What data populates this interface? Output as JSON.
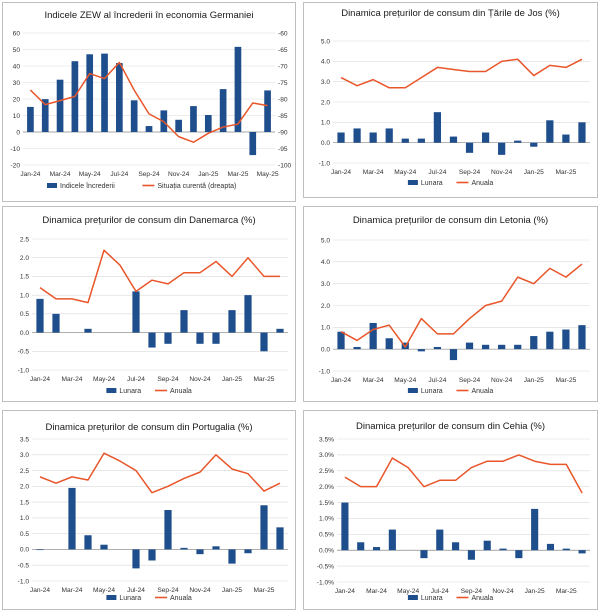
{
  "colors": {
    "bar": "#1f4e8c",
    "line": "#e8562a",
    "grid": "#d9d9d9",
    "zero": "#8c8c8c"
  },
  "chart_data": [
    {
      "id": "zew",
      "type": "bar+line",
      "title": "Indicele ZEW al încrederii în economia Germaniei",
      "categories": [
        "Jan-24",
        "Feb-24",
        "Mar-24",
        "Apr-24",
        "May-24",
        "Jun-24",
        "Jul-24",
        "Aug-24",
        "Sep-24",
        "Oct-24",
        "Nov-24",
        "Dec-24",
        "Jan-25",
        "Feb-25",
        "Mar-25",
        "Apr-25",
        "May-25"
      ],
      "xticks": [
        "Jan-24",
        "Mar-24",
        "May-24",
        "Jul-24",
        "Sep-24",
        "Nov-24",
        "Jan-25",
        "Mar-25",
        "May-25"
      ],
      "ylim": [
        -20,
        60
      ],
      "yticks": [
        -20,
        -10,
        0,
        10,
        20,
        30,
        40,
        50,
        60
      ],
      "y2lim": [
        -100,
        -60
      ],
      "y2ticks": [
        -100,
        -95,
        -90,
        -85,
        -80,
        -75,
        -70,
        -65,
        -60
      ],
      "series": [
        {
          "name": "Indicele încrederii",
          "type": "bar",
          "axis": "left",
          "values": [
            15.2,
            19.9,
            31.7,
            42.9,
            47.1,
            47.5,
            41.8,
            19.2,
            3.6,
            13.1,
            7.4,
            15.7,
            10.3,
            26.0,
            51.6,
            -14.0,
            25.2
          ]
        },
        {
          "name": "Situația curentă (dreapta)",
          "type": "line",
          "axis": "right",
          "values": [
            -77.3,
            -81.7,
            -80.5,
            -79.2,
            -72.3,
            -73.8,
            -68.9,
            -77.3,
            -84.5,
            -86.9,
            -91.4,
            -93.1,
            -90.4,
            -88.5,
            -87.6,
            -81.2,
            -82.0
          ]
        }
      ],
      "legend": [
        "Indicele încrederii",
        "Situația curentă (dreapta)"
      ]
    },
    {
      "id": "nl",
      "type": "bar+line",
      "title": "Dinamica prețurilor de consum din Țările de Jos (%)",
      "categories": [
        "Jan-24",
        "Feb-24",
        "Mar-24",
        "Apr-24",
        "May-24",
        "Jun-24",
        "Jul-24",
        "Aug-24",
        "Sep-24",
        "Oct-24",
        "Nov-24",
        "Dec-24",
        "Jan-25",
        "Feb-25",
        "Mar-25",
        "Apr-25"
      ],
      "xticks": [
        "Jan-24",
        "Mar-24",
        "May-24",
        "Jul-24",
        "Sep-24",
        "Nov-24",
        "Jan-25",
        "Mar-25"
      ],
      "ylim": [
        -1.0,
        5.0
      ],
      "yticks": [
        -1.0,
        0.0,
        1.0,
        2.0,
        3.0,
        4.0,
        5.0
      ],
      "decimals": 1,
      "series": [
        {
          "name": "Lunara",
          "type": "bar",
          "values": [
            0.5,
            0.7,
            0.5,
            0.7,
            0.2,
            0.2,
            1.5,
            0.3,
            -0.5,
            0.5,
            -0.6,
            0.1,
            -0.2,
            1.1,
            0.4,
            1.0
          ]
        },
        {
          "name": "Anuala",
          "type": "line",
          "values": [
            3.2,
            2.8,
            3.1,
            2.7,
            2.7,
            3.2,
            3.7,
            3.6,
            3.5,
            3.5,
            4.0,
            4.1,
            3.3,
            3.8,
            3.7,
            4.1
          ]
        }
      ],
      "legend": [
        "Lunara",
        "Anuala"
      ]
    },
    {
      "id": "dk",
      "type": "bar+line",
      "title": "Dinamica prețurilor de consum din Danemarca (%)",
      "categories": [
        "Jan-24",
        "Feb-24",
        "Mar-24",
        "Apr-24",
        "May-24",
        "Jun-24",
        "Jul-24",
        "Aug-24",
        "Sep-24",
        "Oct-24",
        "Nov-24",
        "Dec-24",
        "Jan-25",
        "Feb-25",
        "Mar-25",
        "Apr-25"
      ],
      "xticks": [
        "Jan-24",
        "Mar-24",
        "May-24",
        "Jul-24",
        "Sep-24",
        "Nov-24",
        "Jan-25",
        "Mar-25"
      ],
      "ylim": [
        -1.0,
        2.5
      ],
      "yticks": [
        -1.0,
        -0.5,
        0.0,
        0.5,
        1.0,
        1.5,
        2.0,
        2.5
      ],
      "decimals": 1,
      "series": [
        {
          "name": "Lunara",
          "type": "bar",
          "values": [
            0.9,
            0.5,
            0.0,
            0.1,
            0.0,
            0.0,
            1.1,
            -0.4,
            -0.3,
            0.6,
            -0.3,
            -0.3,
            0.6,
            1.0,
            -0.5,
            0.1
          ]
        },
        {
          "name": "Anuala",
          "type": "line",
          "values": [
            1.2,
            0.9,
            0.9,
            0.8,
            2.2,
            1.8,
            1.1,
            1.4,
            1.3,
            1.6,
            1.6,
            1.9,
            1.5,
            2.0,
            1.5,
            1.5
          ]
        }
      ],
      "legend": [
        "Lunara",
        "Anuala"
      ]
    },
    {
      "id": "lv",
      "type": "bar+line",
      "title": "Dinamica prețurilor de consum din Letonia (%)",
      "categories": [
        "Jan-24",
        "Feb-24",
        "Mar-24",
        "Apr-24",
        "May-24",
        "Jun-24",
        "Jul-24",
        "Aug-24",
        "Sep-24",
        "Oct-24",
        "Nov-24",
        "Dec-24",
        "Jan-25",
        "Feb-25",
        "Mar-25",
        "Apr-25"
      ],
      "xticks": [
        "Jan-24",
        "Mar-24",
        "May-24",
        "Jul-24",
        "Sep-24",
        "Nov-24",
        "Jan-25",
        "Mar-25"
      ],
      "ylim": [
        -1.0,
        5.0
      ],
      "yticks": [
        -1.0,
        0.0,
        1.0,
        2.0,
        3.0,
        4.0,
        5.0
      ],
      "decimals": 1,
      "series": [
        {
          "name": "Lunara",
          "type": "bar",
          "values": [
            0.8,
            0.1,
            1.2,
            0.5,
            0.3,
            -0.1,
            0.1,
            -0.5,
            0.3,
            0.2,
            0.2,
            0.2,
            0.6,
            0.8,
            0.9,
            1.1
          ]
        },
        {
          "name": "Anuala",
          "type": "line",
          "values": [
            0.8,
            0.4,
            0.9,
            1.1,
            0.1,
            1.4,
            0.7,
            0.7,
            1.4,
            2.0,
            2.2,
            3.3,
            3.0,
            3.7,
            3.3,
            3.9
          ]
        }
      ],
      "legend": [
        "Lunara",
        "Anuala"
      ]
    },
    {
      "id": "pt",
      "type": "bar+line",
      "title": "Dinamica prețurilor de consum din Portugalia (%)",
      "categories": [
        "Jan-24",
        "Feb-24",
        "Mar-24",
        "Apr-24",
        "May-24",
        "Jun-24",
        "Jul-24",
        "Aug-24",
        "Sep-24",
        "Oct-24",
        "Nov-24",
        "Dec-24",
        "Jan-25",
        "Feb-25",
        "Mar-25",
        "Apr-25"
      ],
      "xticks": [
        "Jan-24",
        "Mar-24",
        "May-24",
        "Jul-24",
        "Sep-24",
        "Nov-24",
        "Jan-25",
        "Mar-25"
      ],
      "ylim": [
        -1.0,
        3.5
      ],
      "yticks": [
        -1.0,
        -0.5,
        0.0,
        0.5,
        1.0,
        1.5,
        2.0,
        2.5,
        3.0,
        3.5
      ],
      "decimals": 1,
      "series": [
        {
          "name": "Lunara",
          "type": "bar",
          "values": [
            -0.02,
            0.0,
            1.95,
            0.45,
            0.15,
            0.0,
            -0.6,
            -0.35,
            1.25,
            0.05,
            -0.15,
            0.1,
            -0.45,
            -0.12,
            1.4,
            0.7
          ]
        },
        {
          "name": "Anuala",
          "type": "line",
          "values": [
            2.3,
            2.1,
            2.3,
            2.2,
            3.05,
            2.8,
            2.5,
            1.8,
            2.0,
            2.25,
            2.45,
            3.0,
            2.55,
            2.4,
            1.85,
            2.1
          ]
        }
      ],
      "legend": [
        "Lunara",
        "Anuala"
      ]
    },
    {
      "id": "cz",
      "type": "bar+line",
      "title": "Dinamica prețurilor de consum din Cehia (%)",
      "categories": [
        "Jan-24",
        "Feb-24",
        "Mar-24",
        "Apr-24",
        "May-24",
        "Jun-24",
        "Jul-24",
        "Aug-24",
        "Sep-24",
        "Oct-24",
        "Nov-24",
        "Dec-24",
        "Jan-25",
        "Feb-25",
        "Mar-25",
        "Apr-25"
      ],
      "xticks": [
        "Jan-24",
        "Mar-24",
        "May-24",
        "Jul-24",
        "Sep-24",
        "Nov-24",
        "Jan-25",
        "Mar-25"
      ],
      "ylim": [
        -1.0,
        3.5
      ],
      "yticks": [
        -1.0,
        -0.5,
        0.0,
        0.5,
        1.0,
        1.5,
        2.0,
        2.5,
        3.0,
        3.5
      ],
      "decimals": 1,
      "percent": true,
      "series": [
        {
          "name": "Lunara",
          "type": "bar",
          "values": [
            1.5,
            0.25,
            0.1,
            0.65,
            0.0,
            -0.25,
            0.65,
            0.25,
            -0.3,
            0.3,
            0.05,
            -0.25,
            1.3,
            0.2,
            0.05,
            -0.1
          ]
        },
        {
          "name": "Anuala",
          "type": "line",
          "values": [
            2.3,
            2.0,
            2.0,
            2.9,
            2.6,
            2.0,
            2.2,
            2.2,
            2.6,
            2.8,
            2.8,
            3.0,
            2.8,
            2.7,
            2.7,
            1.8
          ]
        }
      ],
      "legend": [
        "Lunara",
        "Anuala"
      ]
    }
  ]
}
